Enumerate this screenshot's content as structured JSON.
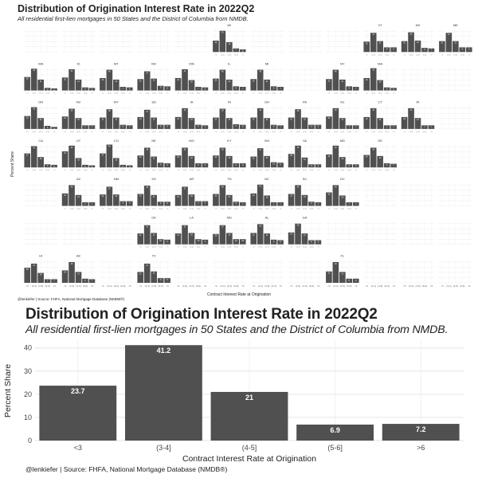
{
  "top": {
    "title": "Distribution of Origination Interest Rate in 2022Q2",
    "subtitle": "All residential first-lien mortgages in 50 States and the District of Columbia from NMDB.",
    "y_label": "Percent Share",
    "x_label": "Contract Interest Rate at Origination",
    "caption": "@lenkiefer | Source: FHFA, National Mortgage Database (NMDB®)"
  },
  "bottom": {
    "title": "Distribution of Origination Interest Rate in 2022Q2",
    "subtitle": "All residential first-lien mortgages in 50 States and the District of Columbia from NMDB.",
    "caption": "@lenkiefer | Source: FHFA, National Mortgage Database (NMDB®)"
  },
  "colors": {
    "bar": "#505050",
    "grid": "#e6e6e6",
    "text": "#222222"
  },
  "chart_data": [
    {
      "type": "bar",
      "title": "Distribution of Origination Interest Rate in 2022Q2",
      "subtitle": "All residential first-lien mortgages in 50 States and the District of Columbia from NMDB.",
      "xlabel": "Contract Interest Rate at Origination",
      "ylabel": "Percent Share",
      "categories": [
        "<3",
        "(3-4]",
        "(4-5]",
        "(5-6]",
        ">6"
      ],
      "values": [
        23.7,
        41.2,
        21,
        6.9,
        7.2
      ],
      "yticks": [
        0,
        10,
        20,
        30,
        40
      ],
      "ylim": [
        0,
        43
      ]
    },
    {
      "type": "bar",
      "layout": "small-multiples (US state grid map)",
      "title": "Distribution of Origination Interest Rate in 2022Q2",
      "xlabel": "Contract Interest Rate at Origination",
      "ylabel": "Percent Share",
      "categories": [
        "<3",
        "(3-4]",
        "(4-5]",
        "(5-6]",
        ">6"
      ],
      "yticks": [
        0,
        10,
        20,
        30,
        40
      ],
      "ylim": [
        0,
        45
      ],
      "rows": [
        [
          null,
          null,
          null,
          null,
          null,
          "WI",
          null,
          null,
          null,
          "VT",
          "NH",
          "ME"
        ],
        [
          "WA",
          "ID",
          "MT",
          "ND",
          "MN",
          "IL",
          "MI",
          null,
          "NY",
          "MA",
          null,
          null
        ],
        [
          "OR",
          "NV",
          "WY",
          "SD",
          "IA",
          "IN",
          "OH",
          "PA",
          "NJ",
          "CT",
          "RI",
          null
        ],
        [
          "CA",
          "UT",
          "CO",
          "NE",
          "MO",
          "KY",
          "WV",
          "VA",
          "MD",
          "DE",
          null,
          null
        ],
        [
          null,
          "AZ",
          "NM",
          "KS",
          "AR",
          "TN",
          "NC",
          "SC",
          "DC",
          null,
          null,
          null
        ],
        [
          null,
          null,
          null,
          "OK",
          "LA",
          "MS",
          "AL",
          "GA",
          null,
          null,
          null,
          null
        ],
        [
          "HI",
          "AK",
          null,
          "TX",
          null,
          null,
          null,
          null,
          "FL",
          null,
          null,
          null
        ]
      ],
      "states": {
        "WI": [
          22,
          41,
          19,
          7,
          5
        ],
        "VT": [
          20,
          37,
          21,
          9,
          9
        ],
        "NH": [
          21,
          38,
          22,
          8,
          7
        ],
        "ME": [
          21,
          37,
          21,
          9,
          9
        ],
        "WA": [
          26,
          42,
          21,
          5,
          4
        ],
        "ID": [
          25,
          41,
          21,
          6,
          5
        ],
        "MT": [
          24,
          40,
          21,
          7,
          6
        ],
        "ND": [
          22,
          37,
          23,
          9,
          8
        ],
        "MN": [
          24,
          41,
          20,
          7,
          6
        ],
        "IL": [
          23,
          40,
          21,
          8,
          7
        ],
        "MI": [
          22,
          40,
          21,
          8,
          7
        ],
        "NY": [
          22,
          40,
          21,
          8,
          7
        ],
        "MA": [
          24,
          43,
          20,
          6,
          5
        ],
        "OR": [
          25,
          42,
          21,
          6,
          4
        ],
        "NV": [
          24,
          39,
          21,
          7,
          7
        ],
        "WY": [
          22,
          38,
          22,
          8,
          7
        ],
        "SD": [
          23,
          37,
          22,
          8,
          8
        ],
        "IA": [
          23,
          40,
          21,
          8,
          7
        ],
        "IN": [
          22,
          39,
          21,
          9,
          8
        ],
        "OH": [
          22,
          40,
          21,
          8,
          7
        ],
        "PA": [
          22,
          38,
          22,
          8,
          8
        ],
        "NJ": [
          24,
          40,
          21,
          7,
          7
        ],
        "CT": [
          23,
          40,
          21,
          7,
          7
        ],
        "RI": [
          23,
          40,
          21,
          7,
          7
        ],
        "CA": [
          27,
          41,
          20,
          6,
          5
        ],
        "UT": [
          31,
          42,
          18,
          5,
          4
        ],
        "CO": [
          27,
          44,
          18,
          5,
          4
        ],
        "NE": [
          23,
          38,
          21,
          9,
          8
        ],
        "MO": [
          23,
          38,
          22,
          8,
          8
        ],
        "KY": [
          23,
          38,
          22,
          8,
          8
        ],
        "WV": [
          21,
          37,
          22,
          10,
          9
        ],
        "VA": [
          26,
          42,
          19,
          6,
          6
        ],
        "MD": [
          25,
          42,
          20,
          6,
          6
        ],
        "DE": [
          24,
          38,
          22,
          8,
          7
        ],
        "AZ": [
          24,
          40,
          21,
          7,
          7
        ],
        "NM": [
          22,
          37,
          22,
          9,
          9
        ],
        "KS": [
          23,
          39,
          21,
          8,
          8
        ],
        "AR": [
          21,
          37,
          22,
          9,
          9
        ],
        "TN": [
          23,
          40,
          21,
          8,
          7
        ],
        "NC": [
          24,
          41,
          20,
          7,
          7
        ],
        "SC": [
          23,
          40,
          21,
          8,
          7
        ],
        "DC": [
          26,
          40,
          20,
          7,
          7
        ],
        "OK": [
          21,
          37,
          22,
          10,
          9
        ],
        "LA": [
          21,
          37,
          22,
          10,
          9
        ],
        "MS": [
          20,
          37,
          22,
          10,
          10
        ],
        "AL": [
          22,
          39,
          21,
          9,
          8
        ],
        "GA": [
          23,
          40,
          21,
          8,
          8
        ],
        "HI": [
          29,
          37,
          19,
          7,
          7
        ],
        "AK": [
          24,
          40,
          21,
          8,
          7
        ],
        "TX": [
          21,
          37,
          22,
          9,
          9
        ],
        "FL": [
          22,
          40,
          21,
          8,
          8
        ]
      }
    }
  ]
}
